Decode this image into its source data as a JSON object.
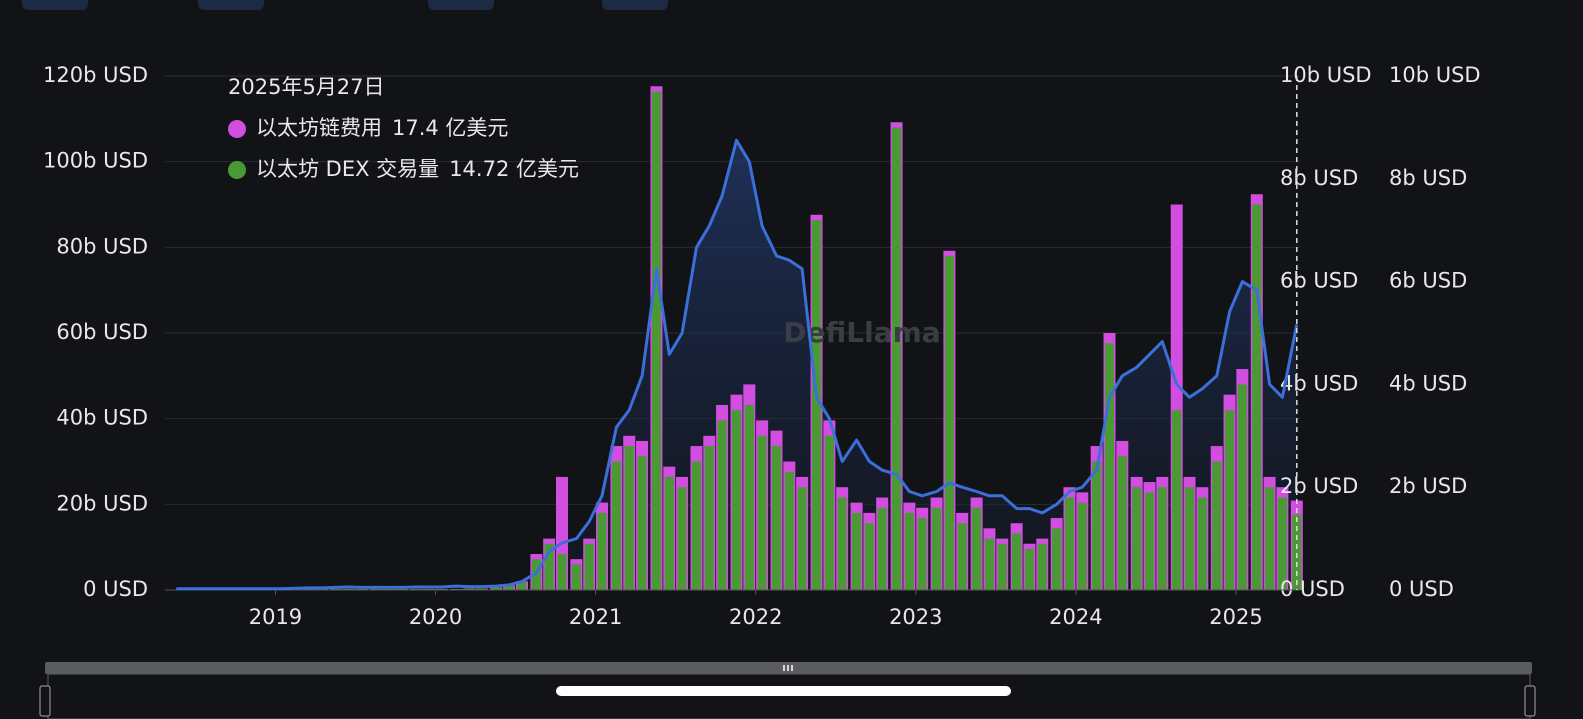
{
  "chart_data": {
    "type": "combo",
    "watermark": "DefiLlama",
    "x": [
      2018.38,
      2018.46,
      2018.54,
      2018.63,
      2018.71,
      2018.79,
      2018.88,
      2018.96,
      2019.04,
      2019.13,
      2019.21,
      2019.29,
      2019.38,
      2019.46,
      2019.54,
      2019.63,
      2019.71,
      2019.79,
      2019.88,
      2019.96,
      2020.04,
      2020.13,
      2020.21,
      2020.29,
      2020.38,
      2020.46,
      2020.54,
      2020.63,
      2020.71,
      2020.79,
      2020.88,
      2020.96,
      2021.04,
      2021.13,
      2021.21,
      2021.29,
      2021.38,
      2021.46,
      2021.54,
      2021.63,
      2021.71,
      2021.79,
      2021.88,
      2021.96,
      2022.04,
      2022.13,
      2022.21,
      2022.29,
      2022.38,
      2022.46,
      2022.54,
      2022.63,
      2022.71,
      2022.79,
      2022.88,
      2022.96,
      2023.04,
      2023.13,
      2023.21,
      2023.29,
      2023.38,
      2023.46,
      2023.54,
      2023.63,
      2023.71,
      2023.79,
      2023.88,
      2023.96,
      2024.04,
      2024.13,
      2024.21,
      2024.29,
      2024.38,
      2024.46,
      2024.54,
      2024.63,
      2024.71,
      2024.79,
      2024.88,
      2024.96,
      2025.04,
      2025.13,
      2025.21,
      2025.29,
      2025.38
    ],
    "xlim": [
      2018.31,
      2025.4
    ],
    "xticks": [
      2019,
      2020,
      2021,
      2022,
      2023,
      2024,
      2025
    ],
    "ylim": [
      0,
      120
    ],
    "yticks": [
      {
        "value": 0,
        "label": "0 USD"
      },
      {
        "value": 20,
        "label": "20b USD"
      },
      {
        "value": 40,
        "label": "40b USD"
      },
      {
        "value": 60,
        "label": "60b USD"
      },
      {
        "value": 80,
        "label": "80b USD"
      },
      {
        "value": 100,
        "label": "100b USD"
      },
      {
        "value": 120,
        "label": "120b USD"
      }
    ],
    "y2lim": [
      0,
      10
    ],
    "y2ticks": [
      {
        "value": 0,
        "label": "0 USD"
      },
      {
        "value": 2,
        "label": "2b USD"
      },
      {
        "value": 4,
        "label": "4b USD"
      },
      {
        "value": 6,
        "label": "6b USD"
      },
      {
        "value": 8,
        "label": "8b USD"
      },
      {
        "value": 10,
        "label": "10b USD"
      }
    ],
    "y3lim": [
      0,
      10
    ],
    "y3ticks": [
      {
        "value": 0,
        "label": "0 USD"
      },
      {
        "value": 2,
        "label": "2b USD"
      },
      {
        "value": 4,
        "label": "4b USD"
      },
      {
        "value": 6,
        "label": "6b USD"
      },
      {
        "value": 8,
        "label": "8b USD"
      },
      {
        "value": 10,
        "label": "10b USD"
      }
    ],
    "grid": true,
    "series": [
      {
        "type": "line",
        "color": "#3b6fd9",
        "axis": "y",
        "values": [
          0.3,
          0.3,
          0.3,
          0.3,
          0.3,
          0.3,
          0.3,
          0.3,
          0.3,
          0.4,
          0.5,
          0.5,
          0.6,
          0.7,
          0.6,
          0.6,
          0.6,
          0.6,
          0.7,
          0.7,
          0.7,
          0.9,
          0.8,
          0.8,
          0.9,
          1.2,
          2,
          4,
          9,
          11,
          12,
          16,
          22,
          38,
          42,
          50,
          75,
          55,
          60,
          80,
          85,
          92,
          105,
          100,
          85,
          78,
          77,
          75,
          45,
          40,
          30,
          35,
          30,
          28,
          27,
          23,
          22,
          23,
          25,
          24,
          23,
          22,
          22,
          19,
          19,
          18,
          20,
          23,
          24,
          28,
          45,
          50,
          52,
          55,
          58,
          48,
          45,
          47,
          50,
          65,
          72,
          70,
          48,
          45,
          62
        ]
      },
      {
        "type": "bar",
        "name": "以太坊链费用",
        "color": "#d24ee0",
        "axis": "y2",
        "values": [
          0.01,
          0.01,
          0.01,
          0.01,
          0.01,
          0.01,
          0.01,
          0.01,
          0.02,
          0.02,
          0.02,
          0.02,
          0.02,
          0.02,
          0.02,
          0.02,
          0.02,
          0.02,
          0.02,
          0.02,
          0.02,
          0.02,
          0.03,
          0.03,
          0.05,
          0.09,
          0.17,
          0.7,
          1.0,
          2.2,
          0.6,
          1.0,
          1.7,
          2.8,
          3.0,
          2.9,
          9.8,
          2.4,
          2.2,
          2.8,
          3.0,
          3.6,
          3.8,
          4.0,
          3.3,
          3.1,
          2.5,
          2.2,
          7.3,
          3.3,
          2.0,
          1.7,
          1.5,
          1.8,
          9.1,
          1.7,
          1.6,
          1.8,
          6.6,
          1.5,
          1.8,
          1.2,
          1.0,
          1.3,
          0.9,
          1.0,
          1.4,
          2.0,
          1.9,
          2.8,
          5.0,
          2.9,
          2.2,
          2.1,
          2.2,
          7.5,
          2.2,
          2.0,
          2.8,
          3.8,
          4.3,
          7.7,
          2.2,
          2.0,
          1.74
        ]
      },
      {
        "type": "bar",
        "name": "以太坊 DEX 交易量",
        "color": "#4a9a34",
        "axis": "y3",
        "values": [
          0.01,
          0.01,
          0.01,
          0.01,
          0.01,
          0.01,
          0.01,
          0.01,
          0.02,
          0.02,
          0.02,
          0.02,
          0.02,
          0.02,
          0.02,
          0.02,
          0.02,
          0.02,
          0.02,
          0.02,
          0.02,
          0.02,
          0.03,
          0.03,
          0.05,
          0.08,
          0.15,
          0.6,
          0.9,
          0.7,
          0.5,
          0.9,
          1.5,
          2.5,
          2.8,
          2.6,
          9.7,
          2.2,
          2.0,
          2.5,
          2.8,
          3.3,
          3.5,
          3.6,
          3.0,
          2.8,
          2.3,
          2.0,
          7.2,
          3.0,
          1.8,
          1.5,
          1.3,
          1.6,
          9.0,
          1.5,
          1.4,
          1.6,
          6.5,
          1.3,
          1.6,
          1.0,
          0.9,
          1.1,
          0.8,
          0.9,
          1.2,
          1.8,
          1.7,
          2.5,
          4.8,
          2.6,
          2.0,
          1.9,
          2.0,
          3.5,
          2.0,
          1.8,
          2.5,
          3.5,
          4.0,
          7.5,
          2.0,
          1.8,
          1.47
        ]
      }
    ],
    "tooltip": {
      "date": "2025年5月27日",
      "labels": [
        "17.4 亿美元",
        "14.72 亿美元"
      ]
    }
  }
}
